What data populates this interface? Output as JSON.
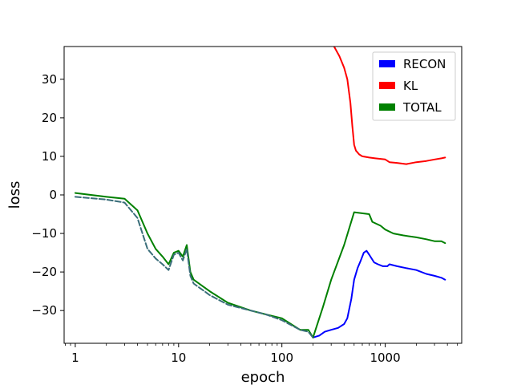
{
  "chart_data": {
    "type": "line",
    "title": "",
    "xlabel": "epoch",
    "ylabel": "loss",
    "x_scale": "log",
    "xlim": [
      0.78,
      5500
    ],
    "ylim": [
      -38.5,
      38.5
    ],
    "x_ticks": [
      {
        "value": 1,
        "label": "1"
      },
      {
        "value": 10,
        "label": "10"
      },
      {
        "value": 100,
        "label": "100"
      },
      {
        "value": 1000,
        "label": "1000"
      }
    ],
    "y_ticks": [
      {
        "value": -30,
        "label": "−30"
      },
      {
        "value": -20,
        "label": "−20"
      },
      {
        "value": -10,
        "label": "−10"
      },
      {
        "value": 0,
        "label": "0"
      },
      {
        "value": 10,
        "label": "10"
      },
      {
        "value": 20,
        "label": "20"
      },
      {
        "value": 30,
        "label": "30"
      }
    ],
    "grid": false,
    "legend_position": "top-right",
    "series": [
      {
        "name": "RECON",
        "color": "#0000ff",
        "x": [
          200,
          230,
          260,
          300,
          350,
          400,
          430,
          470,
          500,
          540,
          580,
          620,
          660,
          700,
          780,
          850,
          950,
          1050,
          1100,
          1300,
          1600,
          2000,
          2500,
          3000,
          3500,
          3800
        ],
        "y": [
          -37,
          -36.5,
          -35.5,
          -35,
          -34.5,
          -33.5,
          -32,
          -27,
          -22,
          -19,
          -17,
          -15,
          -14.5,
          -15.5,
          -17.5,
          -18,
          -18.5,
          -18.5,
          -18,
          -18.5,
          -19,
          -19.5,
          -20.5,
          -21,
          -21.5,
          -22
        ]
      },
      {
        "name": "KL",
        "color": "#ff0000",
        "x": [
          320,
          360,
          400,
          430,
          460,
          480,
          500,
          520,
          560,
          600,
          700,
          800,
          1000,
          1100,
          1300,
          1600,
          2000,
          2500,
          3000,
          3500,
          3800
        ],
        "y": [
          38.5,
          36,
          33,
          30,
          24,
          18,
          13,
          11.5,
          10.5,
          10,
          9.7,
          9.5,
          9.2,
          8.5,
          8.3,
          8,
          8.5,
          8.8,
          9.2,
          9.5,
          9.7
        ]
      },
      {
        "name": "TOTAL",
        "color": "#008000",
        "x": [
          1,
          2,
          3,
          4,
          5,
          6,
          7,
          8,
          9,
          10,
          11,
          12,
          13,
          14,
          20,
          30,
          50,
          70,
          100,
          150,
          180,
          200,
          250,
          300,
          400,
          500,
          700,
          750,
          900,
          1000,
          1200,
          1500,
          2000,
          2500,
          3000,
          3500,
          3800
        ],
        "y": [
          0.5,
          -0.5,
          -1,
          -4,
          -10,
          -14,
          -16,
          -18,
          -15,
          -14.5,
          -16,
          -13,
          -20,
          -22,
          -25,
          -28,
          -30,
          -31,
          -32,
          -35,
          -35,
          -37,
          -29,
          -22,
          -13,
          -4.5,
          -5,
          -7,
          -8,
          -9,
          -10,
          -10.5,
          -11,
          -11.5,
          -12,
          -12,
          -12.5
        ]
      },
      {
        "name": "",
        "color": "#3a6e7a",
        "dashed": true,
        "x": [
          1,
          2,
          3,
          4,
          5,
          6,
          7,
          8,
          9,
          10,
          11,
          12,
          13,
          14,
          20,
          30,
          50,
          70,
          100,
          150,
          180,
          200
        ],
        "y": [
          -0.5,
          -1.2,
          -2,
          -6,
          -14,
          -16.5,
          -18,
          -19.5,
          -15.5,
          -15,
          -17,
          -14,
          -21,
          -23,
          -26,
          -28.5,
          -30,
          -31,
          -32.5,
          -35,
          -35.5,
          -37
        ]
      }
    ]
  }
}
